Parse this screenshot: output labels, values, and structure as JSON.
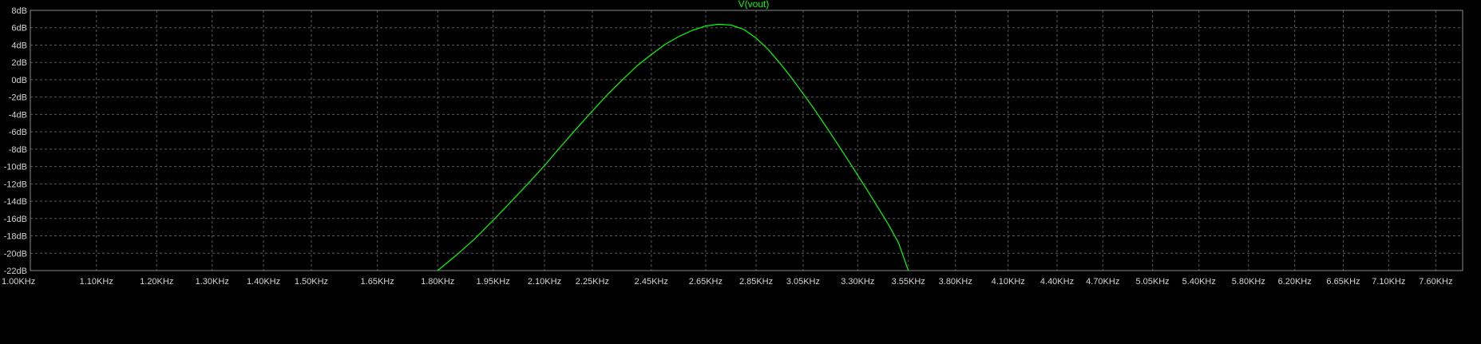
{
  "chart_data": {
    "type": "line",
    "title": "V(vout)",
    "x_scale": "log",
    "x_unit": "Hz",
    "xlim": [
      1000,
      7900
    ],
    "ylim": [
      -22,
      8
    ],
    "grid": true,
    "x_ticks": [
      {
        "value": 1000,
        "label": "1.00KHz"
      },
      {
        "value": 1100,
        "label": "1.10KHz"
      },
      {
        "value": 1200,
        "label": "1.20KHz"
      },
      {
        "value": 1300,
        "label": "1.30KHz"
      },
      {
        "value": 1400,
        "label": "1.40KHz"
      },
      {
        "value": 1500,
        "label": "1.50KHz"
      },
      {
        "value": 1650,
        "label": "1.65KHz"
      },
      {
        "value": 1800,
        "label": "1.80KHz"
      },
      {
        "value": 1950,
        "label": "1.95KHz"
      },
      {
        "value": 2100,
        "label": "2.10KHz"
      },
      {
        "value": 2250,
        "label": "2.25KHz"
      },
      {
        "value": 2450,
        "label": "2.45KHz"
      },
      {
        "value": 2650,
        "label": "2.65KHz"
      },
      {
        "value": 2850,
        "label": "2.85KHz"
      },
      {
        "value": 3050,
        "label": "3.05KHz"
      },
      {
        "value": 3300,
        "label": "3.30KHz"
      },
      {
        "value": 3550,
        "label": "3.55KHz"
      },
      {
        "value": 3800,
        "label": "3.80KHz"
      },
      {
        "value": 4100,
        "label": "4.10KHz"
      },
      {
        "value": 4400,
        "label": "4.40KHz"
      },
      {
        "value": 4700,
        "label": "4.70KHz"
      },
      {
        "value": 5050,
        "label": "5.05KHz"
      },
      {
        "value": 5400,
        "label": "5.40KHz"
      },
      {
        "value": 5800,
        "label": "5.80KHz"
      },
      {
        "value": 6200,
        "label": "6.20KHz"
      },
      {
        "value": 6650,
        "label": "6.65KHz"
      },
      {
        "value": 7100,
        "label": "7.10KHz"
      },
      {
        "value": 7600,
        "label": "7.60KHz"
      }
    ],
    "y_ticks": [
      {
        "value": 8,
        "label": "8dB"
      },
      {
        "value": 6,
        "label": "6dB"
      },
      {
        "value": 4,
        "label": "4dB"
      },
      {
        "value": 2,
        "label": "2dB"
      },
      {
        "value": 0,
        "label": "0dB"
      },
      {
        "value": -2,
        "label": "-2dB"
      },
      {
        "value": -4,
        "label": "-4dB"
      },
      {
        "value": -6,
        "label": "-6dB"
      },
      {
        "value": -8,
        "label": "-8dB"
      },
      {
        "value": -10,
        "label": "-10dB"
      },
      {
        "value": -12,
        "label": "-12dB"
      },
      {
        "value": -14,
        "label": "-14dB"
      },
      {
        "value": -16,
        "label": "-16dB"
      },
      {
        "value": -18,
        "label": "-18dB"
      },
      {
        "value": -20,
        "label": "-20dB"
      },
      {
        "value": -22,
        "label": "-22dB"
      }
    ],
    "series": [
      {
        "name": "V(vout)",
        "color": "#00ff00",
        "x": [
          1800,
          1850,
          1900,
          1950,
          2000,
          2050,
          2100,
          2150,
          2200,
          2250,
          2300,
          2350,
          2400,
          2450,
          2500,
          2550,
          2600,
          2650,
          2700,
          2750,
          2800,
          2850,
          2900,
          2950,
          3000,
          3050,
          3100,
          3150,
          3200,
          3250,
          3300,
          3350,
          3400,
          3450,
          3500,
          3550
        ],
        "y": [
          -22.0,
          -20.2,
          -18.3,
          -16.2,
          -14.1,
          -12.0,
          -9.9,
          -7.7,
          -5.6,
          -3.6,
          -1.7,
          0.0,
          1.6,
          2.9,
          4.1,
          5.0,
          5.7,
          6.2,
          6.4,
          6.3,
          5.8,
          4.8,
          3.5,
          1.9,
          0.2,
          -1.6,
          -3.4,
          -5.3,
          -7.2,
          -9.1,
          -11.0,
          -12.9,
          -14.8,
          -16.7,
          -18.8,
          -22.0
        ]
      }
    ]
  },
  "colors": {
    "background": "#000000",
    "grid": "#5a5a5a",
    "axis_text": "#d4d4d4",
    "trace": "#00ff00"
  }
}
